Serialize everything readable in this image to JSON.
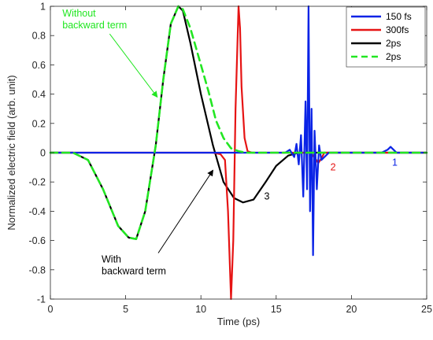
{
  "chart_data": {
    "type": "line",
    "title": "",
    "xlabel": "Time (ps)",
    "ylabel": "Normalized electric field (arb. unit)",
    "xlim": [
      0,
      25
    ],
    "ylim": [
      -1,
      1
    ],
    "xticks": [
      "0",
      "5",
      "10",
      "15",
      "20",
      "25"
    ],
    "yticks": [
      "-1",
      "-0.8",
      "-0.6",
      "-0.4",
      "-0.2",
      "0",
      "0.2",
      "0.4",
      "0.6",
      "0.8",
      "1"
    ],
    "grid": false,
    "legend_position": "top-right",
    "series": [
      {
        "name": "150 fs",
        "color": "#0a23e6",
        "style": "solid",
        "x": [
          0,
          15.6,
          15.9,
          16.2,
          16.35,
          16.5,
          16.65,
          16.8,
          16.95,
          17.05,
          17.15,
          17.25,
          17.35,
          17.45,
          17.55,
          17.7,
          17.85,
          18.0,
          18.5,
          22.0,
          22.4,
          22.6,
          22.8,
          23.0,
          25
        ],
        "y": [
          0,
          0,
          0.02,
          -0.03,
          0.06,
          -0.08,
          0.12,
          -0.3,
          0.35,
          -0.25,
          1.0,
          -0.4,
          0.3,
          -0.7,
          0.15,
          -0.25,
          0.05,
          -0.05,
          0,
          0,
          0.02,
          0.04,
          0.02,
          0,
          0
        ]
      },
      {
        "name": "300fs",
        "color": "#e61414",
        "style": "solid",
        "x": [
          0,
          10.8,
          11.3,
          11.6,
          11.8,
          12.0,
          12.15,
          12.3,
          12.5,
          12.6,
          12.7,
          12.9,
          13.1,
          13.4,
          17.3,
          17.6,
          17.8,
          18.0,
          18.2,
          25
        ],
        "y": [
          0,
          0,
          -0.01,
          -0.05,
          -0.4,
          -1.0,
          -0.6,
          0.3,
          1.0,
          0.85,
          0.45,
          0.1,
          0.01,
          0,
          0,
          -0.04,
          -0.07,
          -0.04,
          0,
          0
        ]
      },
      {
        "name": "2ps",
        "color": "#000000",
        "style": "solid",
        "x": [
          0,
          1.5,
          2.5,
          3.5,
          4.5,
          5.2,
          5.7,
          6.3,
          7.0,
          7.5,
          8.0,
          8.5,
          8.8,
          9.3,
          10.0,
          10.8,
          11.5,
          12.2,
          12.8,
          13.5,
          14.3,
          15.0,
          15.8,
          16.5,
          25
        ],
        "y": [
          0,
          0,
          -0.05,
          -0.25,
          -0.5,
          -0.58,
          -0.59,
          -0.4,
          0.05,
          0.5,
          0.88,
          1.0,
          0.97,
          0.75,
          0.4,
          0.05,
          -0.2,
          -0.31,
          -0.34,
          -0.32,
          -0.2,
          -0.09,
          -0.02,
          0,
          0
        ]
      },
      {
        "name": "2ps",
        "color": "#22e622",
        "style": "dashed",
        "x": [
          0,
          1.5,
          2.5,
          3.5,
          4.5,
          5.2,
          5.7,
          6.3,
          7.0,
          7.5,
          8.0,
          8.5,
          8.8,
          9.3,
          10.0,
          10.5,
          11.0,
          11.5,
          12.0,
          12.5,
          13.0,
          25
        ],
        "y": [
          0,
          0,
          -0.05,
          -0.25,
          -0.5,
          -0.58,
          -0.59,
          -0.4,
          0.05,
          0.5,
          0.88,
          1.0,
          0.98,
          0.85,
          0.6,
          0.42,
          0.22,
          0.1,
          0.03,
          0.01,
          0,
          0
        ]
      }
    ],
    "annotations": [
      {
        "text": "Without\nbackward term",
        "color": "#22e622",
        "x": 0.8,
        "y": 0.93,
        "arrow_to": [
          7.1,
          0.38
        ]
      },
      {
        "text": "With\nbackward term",
        "color": "#000000",
        "x": 3.4,
        "y": -0.75,
        "arrow_to": [
          10.8,
          -0.12
        ]
      },
      {
        "text": "1",
        "color": "#0a23e6",
        "x": 22.7,
        "y": -0.09
      },
      {
        "text": "2",
        "color": "#e61414",
        "x": 18.6,
        "y": -0.12
      },
      {
        "text": "3",
        "color": "#000000",
        "x": 14.2,
        "y": -0.32
      }
    ]
  }
}
